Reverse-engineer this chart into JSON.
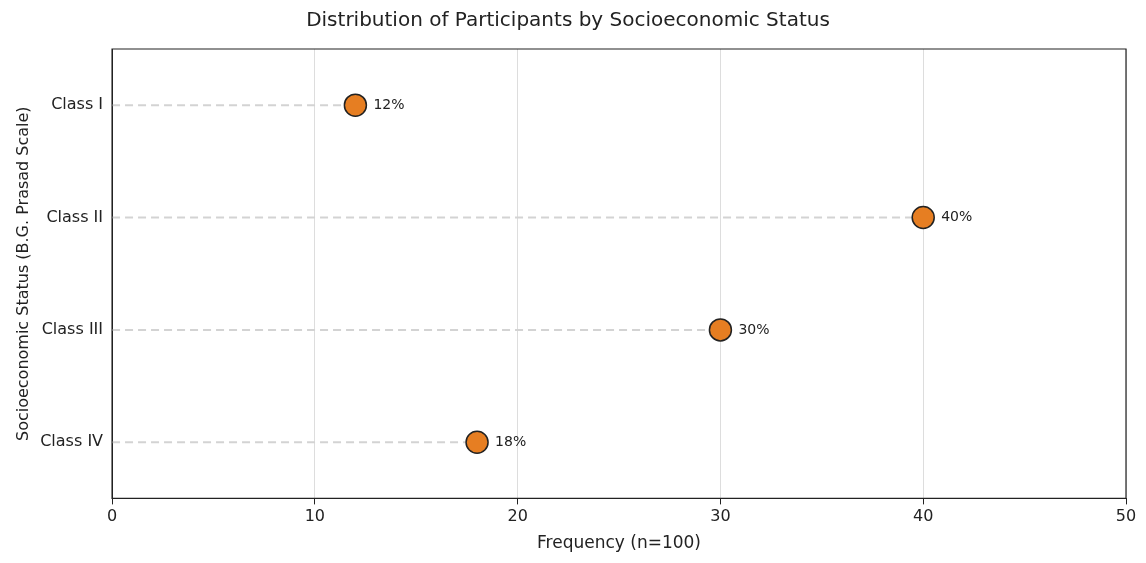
{
  "chart_data": {
    "type": "lollipop",
    "orientation": "horizontal",
    "title": "Distribution of Participants by Socioeconomic Status",
    "xlabel": "Frequency (n=100)",
    "ylabel": "Socioeconomic Status (B.G. Prasad Scale)",
    "categories": [
      "Class I",
      "Class II",
      "Class III",
      "Class IV"
    ],
    "values": [
      12,
      40,
      30,
      18
    ],
    "value_labels": [
      "12%",
      "40%",
      "30%",
      "18%"
    ],
    "color": "#e67e22",
    "xlim": [
      0,
      50
    ],
    "xticks": [
      0,
      10,
      20,
      30,
      40,
      50
    ],
    "grid": "x",
    "marker": "circle",
    "line_style": "dashed",
    "legend": false
  }
}
